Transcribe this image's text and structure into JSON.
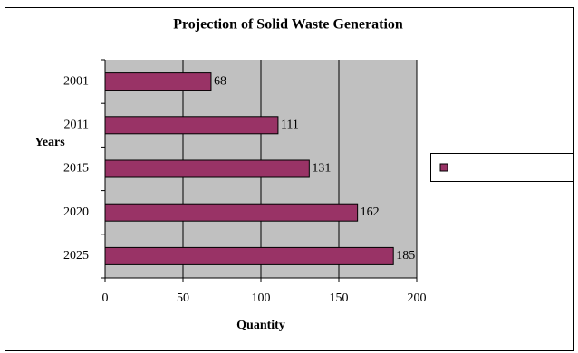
{
  "chart_data": {
    "type": "bar",
    "orientation": "horizontal",
    "title": "Projection of Solid Waste Generation",
    "x_label": "Quantity",
    "y_label": "Years",
    "categories": [
      "2001",
      "2011",
      "2015",
      "2020",
      "2025"
    ],
    "values": [
      68,
      111,
      131,
      162,
      185
    ],
    "color": "#993366",
    "xlim": [
      0,
      200
    ],
    "xticks": [
      0,
      50,
      100,
      150,
      200
    ],
    "grid": true,
    "legend": "right"
  }
}
